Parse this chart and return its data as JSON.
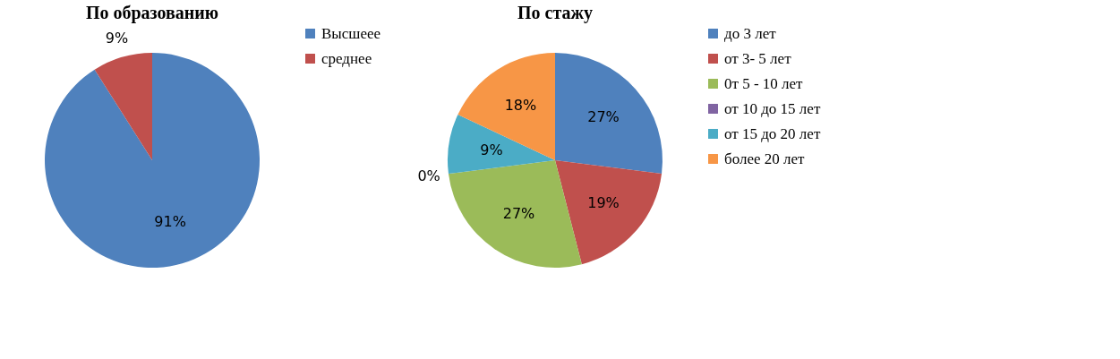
{
  "chart_data": [
    {
      "type": "pie",
      "title": "По образованию",
      "categories": [
        "Высшеее",
        "среднее"
      ],
      "values": [
        91,
        9
      ],
      "colors": [
        "#4f81bd",
        "#c0504d"
      ],
      "value_labels": [
        "91%",
        "9%"
      ],
      "legend": "right"
    },
    {
      "type": "pie",
      "title": "По стажу",
      "categories": [
        "до  3 лет",
        "от 3- 5 лет",
        "0т 5 - 10 лет",
        "от 10 до 15 лет",
        "от 15 до 20 лет",
        "более 20 лет"
      ],
      "values": [
        27,
        19,
        27,
        0,
        9,
        18
      ],
      "colors": [
        "#4f81bd",
        "#c0504d",
        "#9bbb59",
        "#8064a2",
        "#4bacc6",
        "#f79646"
      ],
      "value_labels": [
        "27%",
        "19%",
        "27%",
        "0%",
        "9%",
        "18%"
      ],
      "legend": "right"
    }
  ]
}
